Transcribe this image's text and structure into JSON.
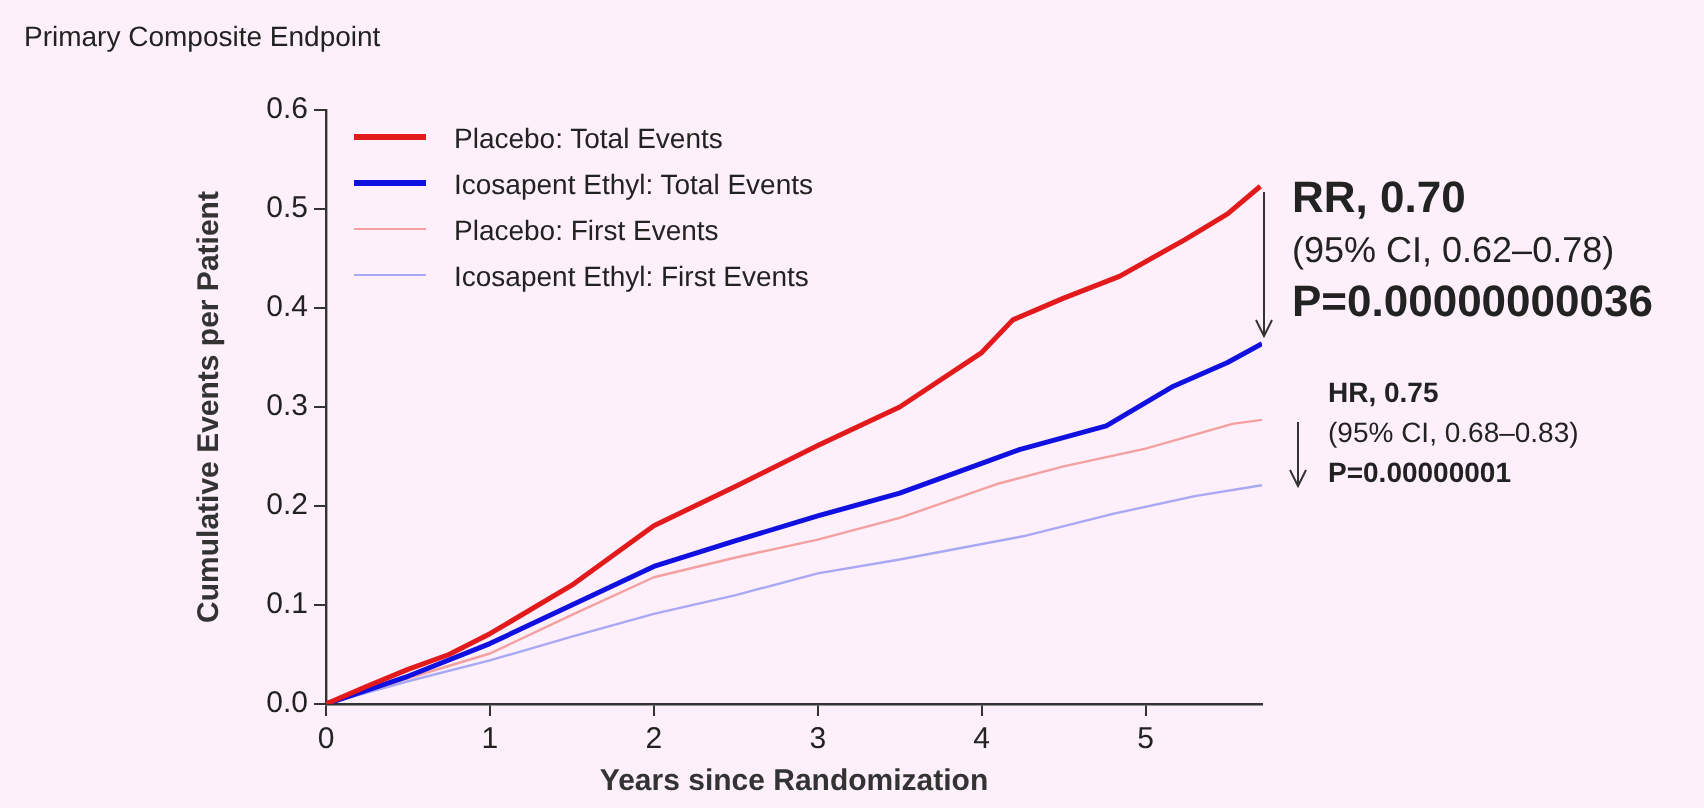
{
  "chart_data": {
    "type": "line",
    "title": "Primary Composite Endpoint",
    "xlabel": "Years since Randomization",
    "ylabel": "Cumulative Events per Patient",
    "xlim": [
      0,
      5.71
    ],
    "xticks": [
      0,
      1,
      2,
      3,
      4,
      5
    ],
    "ylim": [
      0,
      0.6
    ],
    "yticks": [
      {
        "value": 0,
        "label": "0.0"
      },
      0.1,
      0.2,
      0.3,
      0.4,
      0.5,
      0.6
    ],
    "grid": false,
    "legend": "top left",
    "marker": "none",
    "line_style": "solid",
    "series": [
      {
        "name": "Placebo: Total Events",
        "color": "#e31a1c",
        "x": [
          0,
          0.25,
          0.5,
          0.75,
          1,
          1.5,
          2,
          2.5,
          3,
          3.5,
          4,
          4.19,
          4.5,
          4.84,
          5.24,
          5.5,
          5.7
        ],
        "values": [
          0,
          0.018,
          0.035,
          0.05,
          0.071,
          0.12,
          0.18,
          0.22,
          0.261,
          0.3,
          0.355,
          0.388,
          0.41,
          0.432,
          0.469,
          0.495,
          0.523
        ]
      },
      {
        "name": "Icosapent Ethyl: Total Events",
        "color": "#1010e0",
        "x": [
          0,
          0.5,
          1,
          1.5,
          2,
          2.5,
          3,
          3.5,
          4,
          4.23,
          4.76,
          5.17,
          5.5,
          5.71
        ],
        "values": [
          0,
          0.028,
          0.061,
          0.1,
          0.139,
          0.165,
          0.19,
          0.213,
          0.243,
          0.257,
          0.281,
          0.321,
          0.345,
          0.364
        ]
      },
      {
        "name": "Placebo: First Events",
        "color": "#f4a0a0",
        "x": [
          0,
          0.5,
          1,
          1.5,
          2,
          2.5,
          3,
          3.5,
          4.11,
          4.5,
          5,
          5.53,
          5.71
        ],
        "values": [
          0,
          0.026,
          0.051,
          0.09,
          0.128,
          0.148,
          0.166,
          0.188,
          0.223,
          0.24,
          0.258,
          0.283,
          0.287
        ]
      },
      {
        "name": "Icosapent Ethyl: First Events",
        "color": "#a8a8f4",
        "x": [
          0,
          0.5,
          1,
          1.5,
          2,
          2.5,
          3,
          3.5,
          4.27,
          4.8,
          5.3,
          5.71
        ],
        "values": [
          0,
          0.023,
          0.044,
          0.068,
          0.091,
          0.11,
          0.132,
          0.146,
          0.17,
          0.192,
          0.21,
          0.221
        ]
      }
    ],
    "annotations": [
      "RR, 0.70",
      "(95% CI, 0.62–0.78)",
      "P=0.00000000036",
      "HR, 0.75",
      "(95% CI, 0.68–0.83)",
      "P=0.00000001"
    ]
  }
}
